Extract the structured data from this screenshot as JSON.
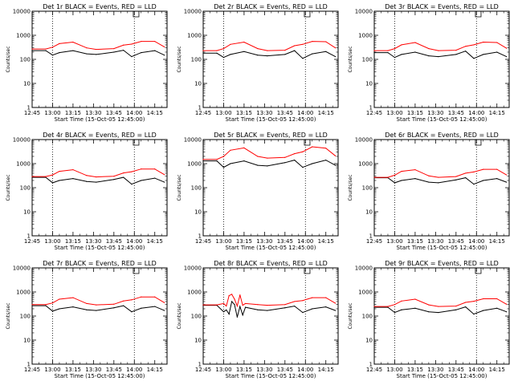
{
  "colors": {
    "events": "#000000",
    "lld": "#ff0000",
    "axis": "#000000",
    "background": "#ffffff"
  },
  "chart_data": [
    {
      "type": "line",
      "title": "Det 1r BLACK = Events, RED = LLD",
      "xlabel": "Start Time (15-Oct-05 12:45:00)",
      "ylabel": "Counts/sec",
      "yscale": "log",
      "ylim": [
        1,
        10000
      ],
      "xlim": [
        "12:45",
        "14:24"
      ],
      "xticks": [
        "12:45",
        "13:00",
        "13:15",
        "13:30",
        "13:45",
        "14:00",
        "14:15"
      ],
      "yticks": [
        "1",
        "10",
        "100",
        "1000",
        "10000"
      ],
      "vlines": [
        "13:00",
        "14:00"
      ],
      "grid": false,
      "series": [
        {
          "name": "Events",
          "x": [
            "12:45",
            "12:55",
            "13:00",
            "13:05",
            "13:15",
            "13:25",
            "13:32",
            "13:45",
            "13:52",
            "13:58",
            "14:05",
            "14:15",
            "14:22"
          ],
          "values": [
            230,
            230,
            150,
            190,
            230,
            170,
            160,
            200,
            240,
            130,
            190,
            230,
            150
          ]
        },
        {
          "name": "LLD",
          "x": [
            "12:45",
            "12:55",
            "13:00",
            "13:05",
            "13:15",
            "13:25",
            "13:32",
            "13:45",
            "13:52",
            "13:58",
            "14:05",
            "14:15",
            "14:22"
          ],
          "values": [
            270,
            270,
            320,
            450,
            520,
            300,
            260,
            280,
            390,
            430,
            560,
            560,
            330
          ]
        }
      ]
    },
    {
      "type": "line",
      "title": "Det 2r BLACK = Events, RED = LLD",
      "xlabel": "Start Time (15-Oct-05 12:45:00)",
      "ylabel": "Counts/sec",
      "yscale": "log",
      "ylim": [
        1,
        10000
      ],
      "xlim": [
        "12:45",
        "14:24"
      ],
      "xticks": [
        "12:45",
        "13:00",
        "13:15",
        "13:30",
        "13:45",
        "14:00",
        "14:15"
      ],
      "yticks": [
        "1",
        "10",
        "100",
        "1000",
        "10000"
      ],
      "vlines": [
        "13:00",
        "14:00"
      ],
      "grid": false,
      "series": [
        {
          "name": "Events",
          "x": [
            "12:45",
            "12:55",
            "13:00",
            "13:05",
            "13:15",
            "13:25",
            "13:32",
            "13:45",
            "13:52",
            "13:58",
            "14:05",
            "14:15",
            "14:22"
          ],
          "values": [
            180,
            180,
            120,
            160,
            210,
            150,
            140,
            160,
            230,
            110,
            170,
            210,
            130
          ]
        },
        {
          "name": "LLD",
          "x": [
            "12:45",
            "12:55",
            "13:00",
            "13:05",
            "13:15",
            "13:25",
            "13:32",
            "13:45",
            "13:52",
            "13:58",
            "14:05",
            "14:15",
            "14:22"
          ],
          "values": [
            230,
            230,
            280,
            420,
            520,
            280,
            230,
            240,
            370,
            420,
            560,
            540,
            300
          ]
        }
      ]
    },
    {
      "type": "line",
      "title": "Det 3r BLACK = Events, RED = LLD",
      "xlabel": "Start Time (15-Oct-05 12:45:00)",
      "ylabel": "Counts/sec",
      "yscale": "log",
      "ylim": [
        1,
        10000
      ],
      "xlim": [
        "12:45",
        "14:24"
      ],
      "xticks": [
        "12:45",
        "13:00",
        "13:15",
        "13:30",
        "13:45",
        "14:00",
        "14:15"
      ],
      "yticks": [
        "1",
        "10",
        "100",
        "1000",
        "10000"
      ],
      "vlines": [
        "13:00",
        "14:00"
      ],
      "grid": false,
      "series": [
        {
          "name": "Events",
          "x": [
            "12:45",
            "12:55",
            "13:00",
            "13:05",
            "13:15",
            "13:25",
            "13:32",
            "13:45",
            "13:52",
            "13:58",
            "14:05",
            "14:15",
            "14:22"
          ],
          "values": [
            190,
            190,
            120,
            160,
            200,
            140,
            130,
            160,
            220,
            110,
            160,
            200,
            130
          ]
        },
        {
          "name": "LLD",
          "x": [
            "12:45",
            "12:55",
            "13:00",
            "13:05",
            "13:15",
            "13:25",
            "13:32",
            "13:45",
            "13:52",
            "13:58",
            "14:05",
            "14:15",
            "14:22"
          ],
          "values": [
            230,
            230,
            280,
            400,
            500,
            280,
            230,
            240,
            350,
            400,
            520,
            500,
            290
          ]
        }
      ]
    },
    {
      "type": "line",
      "title": "Det 4r BLACK = Events, RED = LLD",
      "xlabel": "Start Time (15-Oct-05 12:45:00)",
      "ylabel": "Counts/sec",
      "yscale": "log",
      "ylim": [
        1,
        10000
      ],
      "xlim": [
        "12:45",
        "14:24"
      ],
      "xticks": [
        "12:45",
        "13:00",
        "13:15",
        "13:30",
        "13:45",
        "14:00",
        "14:15"
      ],
      "yticks": [
        "1",
        "10",
        "100",
        "1000",
        "10000"
      ],
      "vlines": [
        "13:00",
        "14:00"
      ],
      "grid": false,
      "series": [
        {
          "name": "Events",
          "x": [
            "12:45",
            "12:55",
            "13:00",
            "13:05",
            "13:15",
            "13:25",
            "13:32",
            "13:45",
            "13:52",
            "13:58",
            "14:05",
            "14:15",
            "14:22"
          ],
          "values": [
            270,
            270,
            160,
            200,
            240,
            180,
            170,
            220,
            270,
            140,
            200,
            250,
            170
          ]
        },
        {
          "name": "LLD",
          "x": [
            "12:45",
            "12:55",
            "13:00",
            "13:05",
            "13:15",
            "13:25",
            "13:32",
            "13:45",
            "13:52",
            "13:58",
            "14:05",
            "14:15",
            "14:22"
          ],
          "values": [
            290,
            290,
            340,
            480,
            560,
            320,
            280,
            300,
            410,
            460,
            600,
            600,
            350
          ]
        }
      ]
    },
    {
      "type": "line",
      "title": "Det 5r BLACK = Events, RED = LLD",
      "xlabel": "Start Time (15-Oct-05 12:45:00)",
      "ylabel": "Counts/sec",
      "yscale": "log",
      "ylim": [
        1,
        10000
      ],
      "xlim": [
        "12:45",
        "14:24"
      ],
      "xticks": [
        "12:45",
        "13:00",
        "13:15",
        "13:30",
        "13:45",
        "14:00",
        "14:15"
      ],
      "yticks": [
        "1",
        "10",
        "100",
        "1000",
        "10000"
      ],
      "vlines": [
        "13:00",
        "14:00"
      ],
      "grid": false,
      "series": [
        {
          "name": "Events",
          "x": [
            "12:45",
            "12:55",
            "13:00",
            "13:05",
            "13:15",
            "13:25",
            "13:32",
            "13:45",
            "13:52",
            "13:58",
            "14:05",
            "14:15",
            "14:22"
          ],
          "values": [
            1300,
            1300,
            700,
            1000,
            1300,
            850,
            800,
            1100,
            1400,
            700,
            1000,
            1400,
            850
          ]
        },
        {
          "name": "LLD",
          "x": [
            "12:45",
            "12:55",
            "13:00",
            "13:05",
            "13:15",
            "13:25",
            "13:32",
            "13:45",
            "13:52",
            "13:58",
            "14:05",
            "14:15",
            "14:22"
          ],
          "values": [
            1500,
            1500,
            2000,
            3600,
            4500,
            2000,
            1700,
            1800,
            2600,
            3100,
            5000,
            4400,
            2100
          ]
        }
      ]
    },
    {
      "type": "line",
      "title": "Det 6r BLACK = Events, RED = LLD",
      "xlabel": "Start Time (15-Oct-05 12:45:00)",
      "ylabel": "Counts/sec",
      "yscale": "log",
      "ylim": [
        1,
        10000
      ],
      "xlim": [
        "12:45",
        "14:24"
      ],
      "xticks": [
        "12:45",
        "13:00",
        "13:15",
        "13:30",
        "13:45",
        "14:00",
        "14:15"
      ],
      "yticks": [
        "1",
        "10",
        "100",
        "1000",
        "10000"
      ],
      "vlines": [
        "13:00",
        "14:00"
      ],
      "grid": false,
      "series": [
        {
          "name": "Events",
          "x": [
            "12:45",
            "12:55",
            "13:00",
            "13:05",
            "13:15",
            "13:25",
            "13:32",
            "13:45",
            "13:52",
            "13:58",
            "14:05",
            "14:15",
            "14:22"
          ],
          "values": [
            260,
            260,
            160,
            200,
            240,
            170,
            160,
            210,
            260,
            140,
            200,
            240,
            170
          ]
        },
        {
          "name": "LLD",
          "x": [
            "12:45",
            "12:55",
            "13:00",
            "13:05",
            "13:15",
            "13:25",
            "13:32",
            "13:45",
            "13:52",
            "13:58",
            "14:05",
            "14:15",
            "14:22"
          ],
          "values": [
            270,
            270,
            330,
            480,
            560,
            310,
            270,
            290,
            400,
            450,
            580,
            580,
            340
          ]
        }
      ]
    },
    {
      "type": "line",
      "title": "Det 7r BLACK = Events, RED = LLD",
      "xlabel": "Start Time (15-Oct-05 12:45:00)",
      "ylabel": "Counts/sec",
      "yscale": "log",
      "ylim": [
        1,
        10000
      ],
      "xlim": [
        "12:45",
        "14:24"
      ],
      "xticks": [
        "12:45",
        "13:00",
        "13:15",
        "13:30",
        "13:45",
        "14:00",
        "14:15"
      ],
      "yticks": [
        "1",
        "10",
        "100",
        "1000",
        "10000"
      ],
      "vlines": [
        "13:00",
        "14:00"
      ],
      "grid": false,
      "series": [
        {
          "name": "Events",
          "x": [
            "12:45",
            "12:55",
            "13:00",
            "13:05",
            "13:15",
            "13:25",
            "13:32",
            "13:45",
            "13:52",
            "13:58",
            "14:05",
            "14:15",
            "14:22"
          ],
          "values": [
            270,
            270,
            160,
            200,
            240,
            180,
            170,
            220,
            270,
            150,
            210,
            250,
            170
          ]
        },
        {
          "name": "LLD",
          "x": [
            "12:45",
            "12:55",
            "13:00",
            "13:05",
            "13:15",
            "13:25",
            "13:32",
            "13:45",
            "13:52",
            "13:58",
            "14:05",
            "14:15",
            "14:22"
          ],
          "values": [
            300,
            300,
            350,
            500,
            580,
            330,
            290,
            310,
            420,
            470,
            620,
            620,
            360
          ]
        }
      ]
    },
    {
      "type": "line",
      "title": "Det 8r BLACK = Events, RED = LLD",
      "xlabel": "Start Time (15-Oct-05 12:45:00)",
      "ylabel": "Counts/sec",
      "yscale": "log",
      "ylim": [
        1,
        10000
      ],
      "xlim": [
        "12:45",
        "14:24"
      ],
      "xticks": [
        "12:45",
        "13:00",
        "13:15",
        "13:30",
        "13:45",
        "14:00",
        "14:15"
      ],
      "yticks": [
        "1",
        "10",
        "100",
        "1000",
        "10000"
      ],
      "vlines": [
        "13:00",
        "14:00"
      ],
      "grid": false,
      "series": [
        {
          "name": "Events",
          "x": [
            "12:45",
            "12:55",
            "13:00",
            "13:02",
            "13:04",
            "13:06",
            "13:08",
            "13:10",
            "13:12",
            "13:14",
            "13:16",
            "13:25",
            "13:32",
            "13:45",
            "13:52",
            "13:58",
            "14:05",
            "14:15",
            "14:22"
          ],
          "values": [
            280,
            280,
            150,
            180,
            120,
            400,
            300,
            90,
            250,
            110,
            230,
            180,
            170,
            220,
            260,
            140,
            200,
            240,
            170
          ]
        },
        {
          "name": "LLD",
          "x": [
            "12:45",
            "12:55",
            "13:00",
            "13:02",
            "13:04",
            "13:06",
            "13:08",
            "13:10",
            "13:12",
            "13:14",
            "13:16",
            "13:25",
            "13:32",
            "13:45",
            "13:52",
            "13:58",
            "14:05",
            "14:15",
            "14:22"
          ],
          "values": [
            290,
            290,
            330,
            260,
            700,
            800,
            500,
            260,
            750,
            280,
            330,
            300,
            280,
            300,
            400,
            440,
            580,
            580,
            340
          ]
        }
      ]
    },
    {
      "type": "line",
      "title": "Det 9r BLACK = Events, RED = LLD",
      "xlabel": "Start Time (15-Oct-05 12:45:00)",
      "ylabel": "Counts/sec",
      "yscale": "log",
      "ylim": [
        1,
        10000
      ],
      "xlim": [
        "12:45",
        "14:24"
      ],
      "xticks": [
        "12:45",
        "13:00",
        "13:15",
        "13:30",
        "13:45",
        "14:00",
        "14:15"
      ],
      "yticks": [
        "1",
        "10",
        "100",
        "1000",
        "10000"
      ],
      "vlines": [
        "13:00",
        "14:00"
      ],
      "grid": false,
      "series": [
        {
          "name": "Events",
          "x": [
            "12:45",
            "12:55",
            "13:00",
            "13:05",
            "13:15",
            "13:25",
            "13:32",
            "13:45",
            "13:52",
            "13:58",
            "14:05",
            "14:15",
            "14:22"
          ],
          "values": [
            230,
            230,
            140,
            180,
            210,
            150,
            140,
            180,
            240,
            120,
            170,
            210,
            150
          ]
        },
        {
          "name": "LLD",
          "x": [
            "12:45",
            "12:55",
            "13:00",
            "13:05",
            "13:15",
            "13:25",
            "13:32",
            "13:45",
            "13:52",
            "13:58",
            "14:05",
            "14:15",
            "14:22"
          ],
          "values": [
            250,
            250,
            300,
            420,
            500,
            290,
            250,
            260,
            370,
            410,
            520,
            520,
            310
          ]
        }
      ]
    }
  ]
}
